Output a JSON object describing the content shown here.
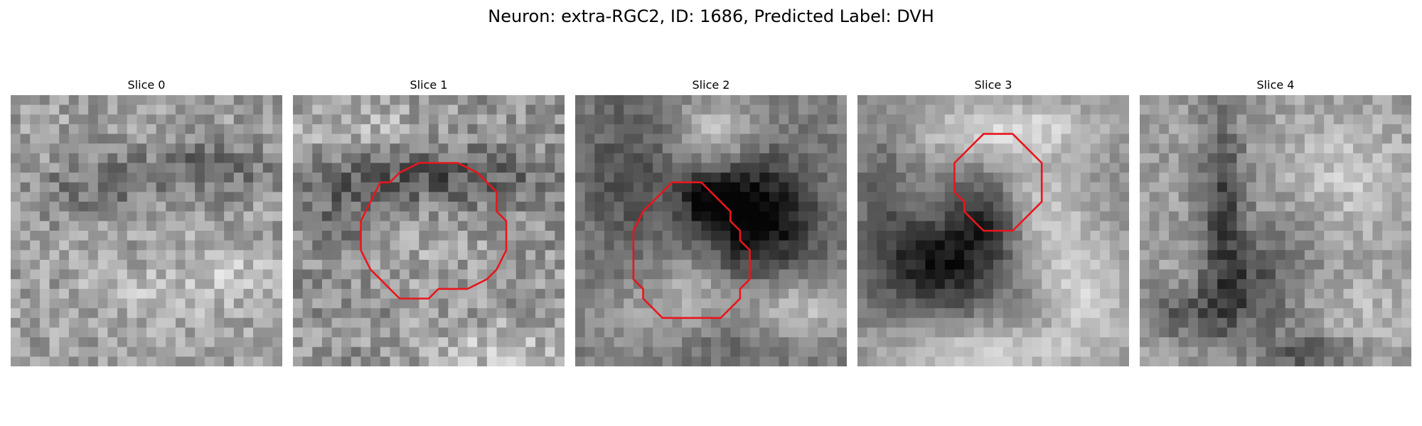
{
  "figure": {
    "title": "Neuron: extra-RGC2, ID: 1686, Predicted Label: DVH"
  },
  "panels": [
    {
      "title": "Slice 0",
      "contour": false,
      "seed": 11,
      "blobs": "slice0"
    },
    {
      "title": "Slice 1",
      "contour": true,
      "seed": 23,
      "blobs": "slice1"
    },
    {
      "title": "Slice 2",
      "contour": true,
      "seed": 37,
      "blobs": "slice2"
    },
    {
      "title": "Slice 3",
      "contour": true,
      "seed": 51,
      "blobs": "slice3"
    },
    {
      "title": "Slice 4",
      "contour": false,
      "seed": 67,
      "blobs": "slice4"
    }
  ],
  "colors": {
    "contour": "#e8161c",
    "background": "#ffffff"
  }
}
